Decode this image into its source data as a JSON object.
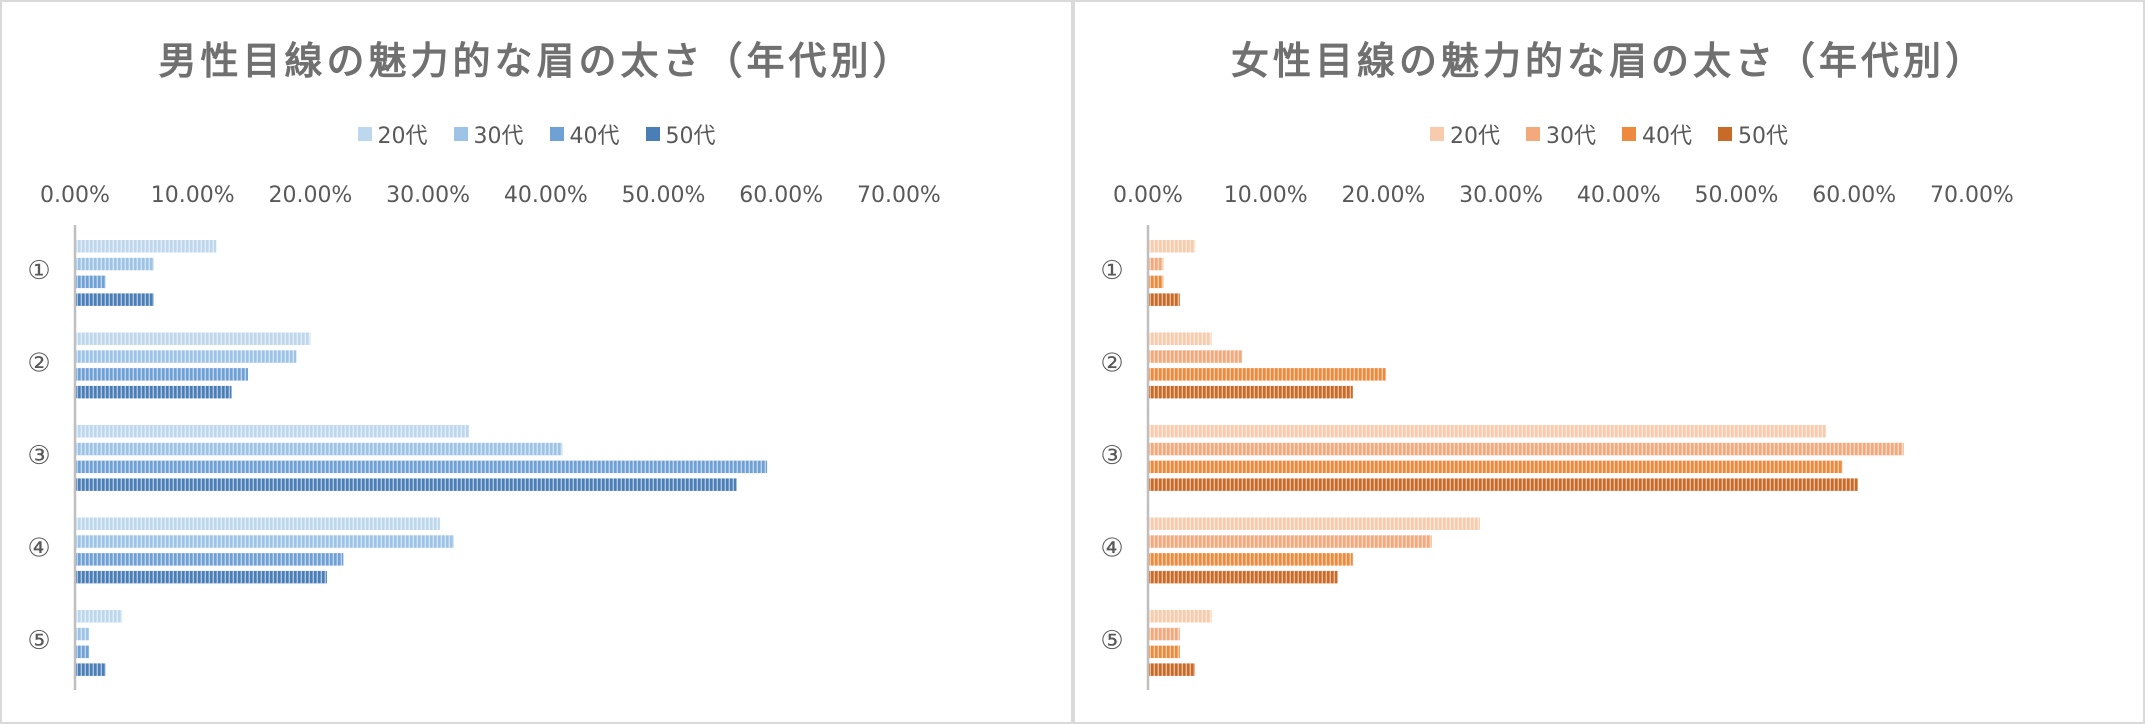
{
  "chart_data": [
    {
      "type": "bar",
      "orientation": "horizontal",
      "title": "男性目線の魅力的な眉の太さ（年代別）",
      "categories": [
        "①",
        "②",
        "③",
        "④",
        "⑤"
      ],
      "xlim": [
        0,
        70
      ],
      "x_ticks": [
        "0.00%",
        "10.00%",
        "20.00%",
        "30.00%",
        "40.00%",
        "50.00%",
        "60.00%",
        "70.00%"
      ],
      "legend_position": "top",
      "grid": false,
      "series": [
        {
          "name": "20代",
          "color": "#bdd7ee",
          "values": [
            12.0,
            20.0,
            33.5,
            31.0,
            4.0
          ]
        },
        {
          "name": "30代",
          "color": "#9dc3e6",
          "values": [
            6.7,
            18.8,
            41.4,
            32.2,
            1.2
          ]
        },
        {
          "name": "40代",
          "color": "#6fa0d6",
          "values": [
            2.6,
            14.7,
            58.8,
            22.8,
            1.2
          ]
        },
        {
          "name": "50代",
          "color": "#4a7eb7",
          "values": [
            6.7,
            13.3,
            56.2,
            21.4,
            2.6
          ]
        }
      ]
    },
    {
      "type": "bar",
      "orientation": "horizontal",
      "title": "女性目線の魅力的な眉の太さ（年代別）",
      "categories": [
        "①",
        "②",
        "③",
        "④",
        "⑤"
      ],
      "xlim": [
        0,
        70
      ],
      "x_ticks": [
        "0.00%",
        "10.00%",
        "20.00%",
        "30.00%",
        "40.00%",
        "50.00%",
        "60.00%",
        "70.00%"
      ],
      "legend_position": "top",
      "grid": false,
      "series": [
        {
          "name": "20代",
          "color": "#f8cbad",
          "values": [
            4.0,
            5.4,
            57.6,
            28.2,
            5.4
          ]
        },
        {
          "name": "30代",
          "color": "#f4a97c",
          "values": [
            1.3,
            8.0,
            64.2,
            24.1,
            2.7
          ]
        },
        {
          "name": "40代",
          "color": "#ed8a3e",
          "values": [
            1.3,
            20.2,
            59.0,
            17.4,
            2.7
          ]
        },
        {
          "name": "50代",
          "color": "#c86a28",
          "values": [
            2.7,
            17.4,
            60.3,
            16.1,
            4.0
          ]
        }
      ]
    }
  ]
}
